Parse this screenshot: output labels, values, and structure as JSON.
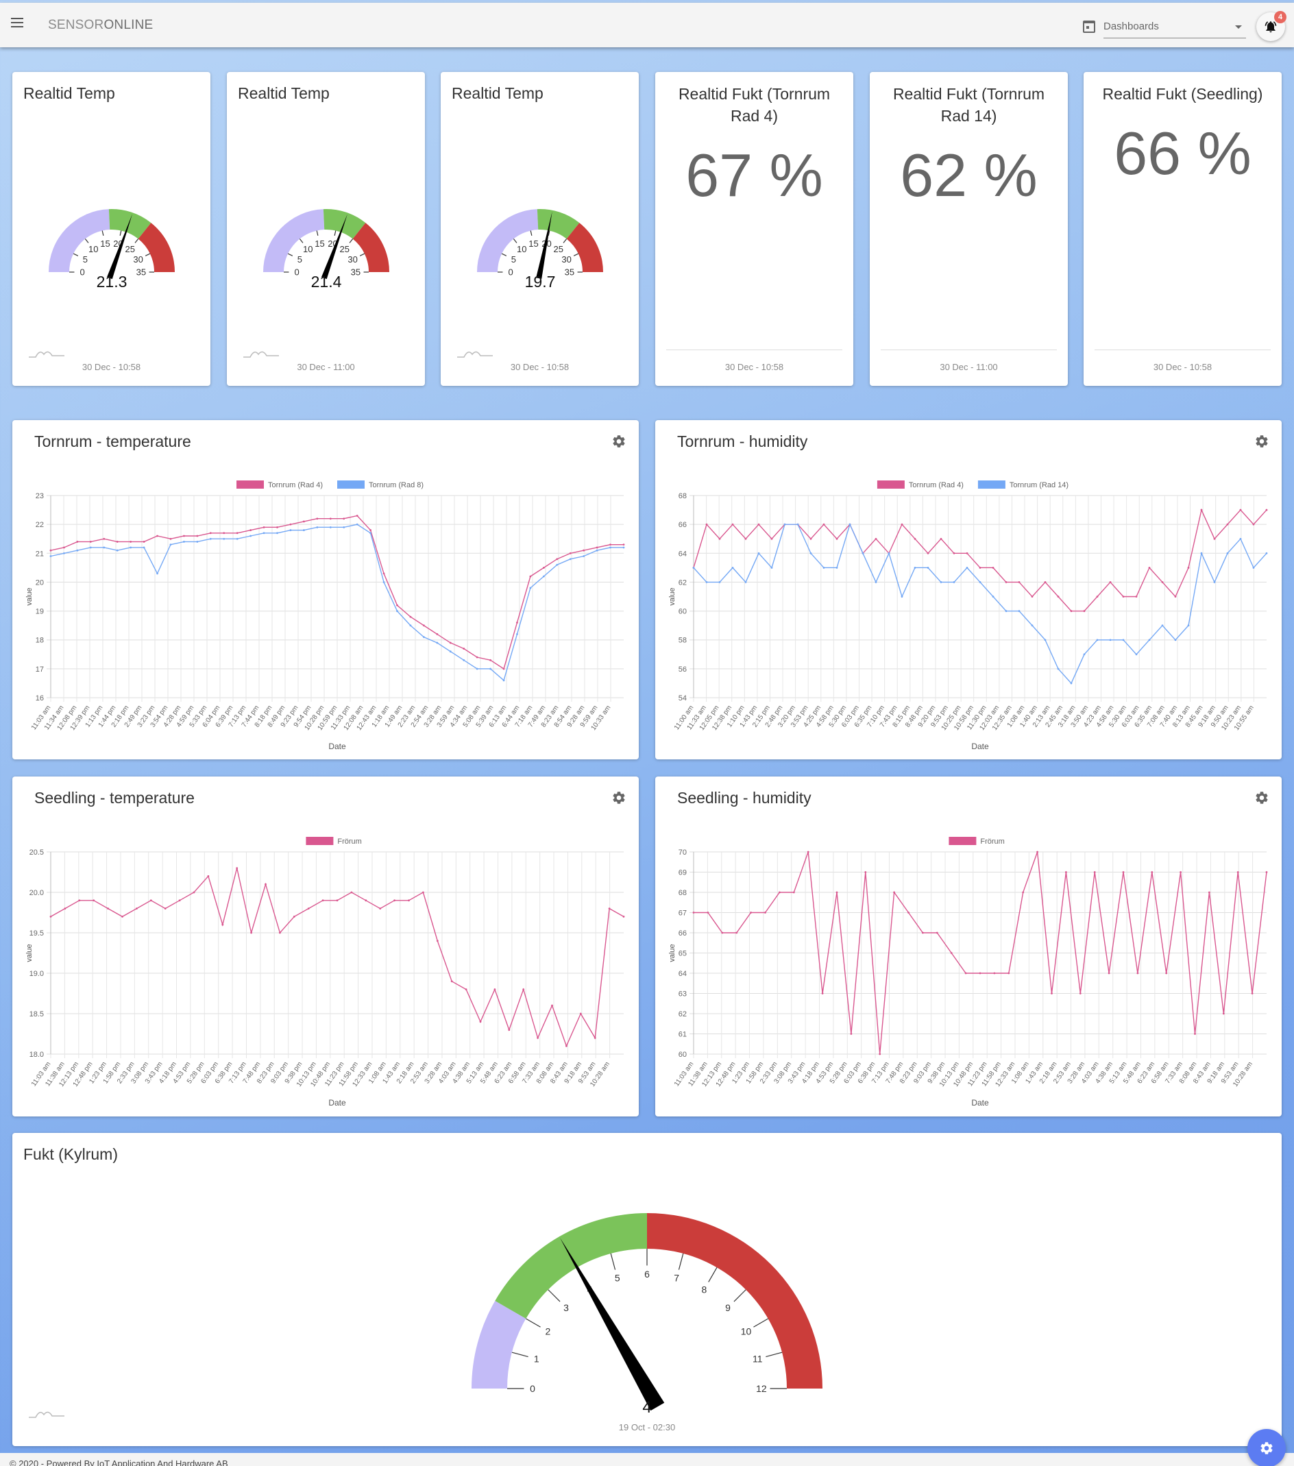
{
  "header": {
    "brand_light": "SENSOR",
    "brand_bold": "ONLINE",
    "dashboard_select": "Dashboards",
    "notification_count": "4"
  },
  "gauges": [
    {
      "title": "Realtid Temp",
      "value": "21.3",
      "value_num": 21.3,
      "min": 0,
      "max": 35,
      "ticks": [
        "0",
        "5",
        "10",
        "15",
        "20",
        "25",
        "30",
        "35"
      ],
      "date": "30 Dec - 10:58"
    },
    {
      "title": "Realtid Temp",
      "value": "21.4",
      "value_num": 21.4,
      "min": 0,
      "max": 35,
      "ticks": [
        "0",
        "5",
        "10",
        "15",
        "20",
        "25",
        "30",
        "35"
      ],
      "date": "30 Dec - 11:00"
    },
    {
      "title": "Realtid Temp",
      "value": "19.7",
      "value_num": 19.7,
      "min": 0,
      "max": 35,
      "ticks": [
        "0",
        "5",
        "10",
        "15",
        "20",
        "25",
        "30",
        "35"
      ],
      "date": "30 Dec - 10:58"
    }
  ],
  "humidity_cards": [
    {
      "title": "Realtid Fukt (Tornrum Rad 4)",
      "value": "67 %",
      "date": "30 Dec - 10:58"
    },
    {
      "title": "Realtid Fukt (Tornrum Rad 14)",
      "value": "62 %",
      "date": "30 Dec - 11:00"
    },
    {
      "title": "Realtid Fukt (Seedling)",
      "value": "66 %",
      "date": "30 Dec - 10:58"
    }
  ],
  "colors": {
    "gauge_low": "#c3bbf7",
    "gauge_mid": "#7bc35a",
    "gauge_high": "#cb3d3a",
    "series_pink": "#d9578f",
    "series_blue": "#74a8f5",
    "fab": "#5c7cf2"
  },
  "chart_data": [
    {
      "type": "line",
      "title": "Tornrum - temperature",
      "xlabel": "Date",
      "ylabel": "value",
      "ylim": [
        16,
        23
      ],
      "yticks": [
        16,
        17,
        18,
        19,
        20,
        21,
        22,
        23
      ],
      "grid": true,
      "legend_position": "top",
      "categories": [
        "11:03 am",
        "11:34 am",
        "12:08 pm",
        "12:39 pm",
        "1:13 pm",
        "1:44 pm",
        "2:18 pm",
        "2:49 pm",
        "3:23 pm",
        "3:54 pm",
        "4:28 pm",
        "4:59 pm",
        "5:33 pm",
        "6:04 pm",
        "6:39 pm",
        "7:13 pm",
        "7:44 pm",
        "8:18 pm",
        "8:49 pm",
        "9:23 pm",
        "9:54 pm",
        "10:28 pm",
        "10:59 pm",
        "11:33 pm",
        "12:08 am",
        "12:43 am",
        "1:18 am",
        "1:49 am",
        "2:23 am",
        "2:54 am",
        "3:28 am",
        "3:59 am",
        "4:34 am",
        "5:08 am",
        "5:39 am",
        "6:13 am",
        "6:44 am",
        "7:18 am",
        "7:49 am",
        "8:23 am",
        "8:54 am",
        "9:28 am",
        "9:59 am",
        "10:33 am"
      ],
      "series": [
        {
          "name": "Tornrum (Rad 4)",
          "color": "#d9578f",
          "values": [
            21.1,
            21.2,
            21.4,
            21.4,
            21.5,
            21.4,
            21.4,
            21.4,
            21.6,
            21.5,
            21.6,
            21.6,
            21.7,
            21.7,
            21.7,
            21.8,
            21.9,
            21.9,
            22.0,
            22.1,
            22.2,
            22.2,
            22.2,
            22.3,
            21.8,
            20.3,
            19.2,
            18.8,
            18.5,
            18.2,
            17.9,
            17.7,
            17.4,
            17.3,
            17.0,
            18.6,
            20.2,
            20.5,
            20.8,
            21.0,
            21.1,
            21.2,
            21.3,
            21.3
          ]
        },
        {
          "name": "Tornrum (Rad 8)",
          "color": "#74a8f5",
          "values": [
            20.9,
            21.0,
            21.1,
            21.2,
            21.2,
            21.1,
            21.2,
            21.2,
            20.3,
            21.3,
            21.4,
            21.4,
            21.5,
            21.5,
            21.5,
            21.6,
            21.7,
            21.7,
            21.8,
            21.8,
            21.9,
            21.9,
            21.9,
            22.0,
            21.7,
            20.0,
            19.0,
            18.5,
            18.1,
            17.9,
            17.6,
            17.3,
            17.0,
            17.0,
            16.6,
            18.2,
            19.8,
            20.2,
            20.6,
            20.8,
            20.9,
            21.1,
            21.2,
            21.2
          ]
        }
      ]
    },
    {
      "type": "line",
      "title": "Tornrum - humidity",
      "xlabel": "Date",
      "ylabel": "value",
      "ylim": [
        54,
        68
      ],
      "yticks": [
        54,
        56,
        58,
        60,
        62,
        64,
        66,
        68
      ],
      "grid": true,
      "legend_position": "top",
      "categories": [
        "11:00 am",
        "11:33 am",
        "12:05 pm",
        "12:38 pm",
        "1:10 pm",
        "1:43 pm",
        "2:15 pm",
        "2:48 pm",
        "3:20 pm",
        "3:53 pm",
        "4:25 pm",
        "4:58 pm",
        "5:30 pm",
        "6:03 pm",
        "6:35 pm",
        "7:10 pm",
        "7:43 pm",
        "8:15 pm",
        "8:48 pm",
        "9:20 pm",
        "9:53 pm",
        "10:25 pm",
        "10:58 pm",
        "11:30 pm",
        "12:03 am",
        "12:35 am",
        "1:08 am",
        "1:40 am",
        "2:13 am",
        "2:45 am",
        "3:18 am",
        "3:50 am",
        "4:23 am",
        "4:58 am",
        "5:30 am",
        "6:03 am",
        "6:35 am",
        "7:08 am",
        "7:40 am",
        "8:13 am",
        "8:45 am",
        "9:18 am",
        "9:50 am",
        "10:23 am",
        "10:55 am"
      ],
      "series": [
        {
          "name": "Tornrum (Rad 4)",
          "color": "#d9578f",
          "values": [
            63,
            66,
            65,
            66,
            65,
            66,
            65,
            66,
            66,
            65,
            66,
            65,
            66,
            64,
            65,
            64,
            66,
            65,
            64,
            65,
            64,
            64,
            63,
            63,
            62,
            62,
            61,
            62,
            61,
            60,
            60,
            61,
            62,
            61,
            61,
            63,
            62,
            61,
            63,
            67,
            65,
            66,
            67,
            66,
            67
          ]
        },
        {
          "name": "Tornrum (Rad 14)",
          "color": "#74a8f5",
          "values": [
            63,
            62,
            62,
            63,
            62,
            64,
            63,
            66,
            66,
            64,
            63,
            63,
            66,
            64,
            62,
            64,
            61,
            63,
            63,
            62,
            62,
            63,
            62,
            61,
            60,
            60,
            59,
            58,
            56,
            55,
            57,
            58,
            58,
            58,
            57,
            58,
            59,
            58,
            59,
            64,
            62,
            64,
            65,
            63,
            64
          ]
        }
      ]
    },
    {
      "type": "line",
      "title": "Seedling - temperature",
      "xlabel": "Date",
      "ylabel": "value",
      "ylim": [
        18.0,
        20.5
      ],
      "yticks": [
        18.0,
        18.5,
        19.0,
        19.5,
        20.0,
        20.5
      ],
      "grid": true,
      "legend_position": "top",
      "categories": [
        "11:03 am",
        "11:38 am",
        "12:13 pm",
        "12:48 pm",
        "1:23 pm",
        "1:58 pm",
        "2:33 pm",
        "3:08 pm",
        "3:43 pm",
        "4:18 pm",
        "4:53 pm",
        "5:28 pm",
        "6:03 pm",
        "6:38 pm",
        "7:13 pm",
        "7:48 pm",
        "8:23 pm",
        "9:03 pm",
        "9:38 pm",
        "10:13 pm",
        "10:48 pm",
        "11:23 pm",
        "11:58 pm",
        "12:33 am",
        "1:08 am",
        "1:43 am",
        "2:18 am",
        "2:53 am",
        "3:28 am",
        "4:03 am",
        "4:38 am",
        "5:13 am",
        "5:48 am",
        "6:23 am",
        "6:58 am",
        "7:33 am",
        "8:08 am",
        "8:43 am",
        "9:18 am",
        "9:53 am",
        "10:28 am"
      ],
      "series": [
        {
          "name": "Frörum",
          "color": "#d9578f",
          "values": [
            19.7,
            19.8,
            19.9,
            19.9,
            19.8,
            19.7,
            19.8,
            19.9,
            19.8,
            19.9,
            20.0,
            20.2,
            19.6,
            20.3,
            19.5,
            20.1,
            19.5,
            19.7,
            19.8,
            19.9,
            19.9,
            20.0,
            19.9,
            19.8,
            19.9,
            19.9,
            20.0,
            19.4,
            18.9,
            18.8,
            18.4,
            18.8,
            18.3,
            18.8,
            18.2,
            18.6,
            18.1,
            18.5,
            18.2,
            19.8,
            19.7
          ]
        }
      ]
    },
    {
      "type": "line",
      "title": "Seedling - humidity",
      "xlabel": "Date",
      "ylabel": "value",
      "ylim": [
        60,
        70
      ],
      "yticks": [
        60,
        61,
        62,
        63,
        64,
        65,
        66,
        67,
        68,
        69,
        70
      ],
      "grid": true,
      "legend_position": "top",
      "categories": [
        "11:03 am",
        "11:38 am",
        "12:13 pm",
        "12:48 pm",
        "1:23 pm",
        "1:58 pm",
        "2:33 pm",
        "3:08 pm",
        "3:43 pm",
        "4:18 pm",
        "4:53 pm",
        "5:28 pm",
        "6:03 pm",
        "6:38 pm",
        "7:13 pm",
        "7:48 pm",
        "8:23 pm",
        "9:03 pm",
        "9:38 pm",
        "10:13 pm",
        "10:48 pm",
        "11:23 pm",
        "11:58 pm",
        "12:33 am",
        "1:08 am",
        "1:43 am",
        "2:18 am",
        "2:53 am",
        "3:28 am",
        "4:03 am",
        "4:38 am",
        "5:13 am",
        "5:48 am",
        "6:23 am",
        "6:58 am",
        "7:33 am",
        "8:08 am",
        "8:43 am",
        "9:18 am",
        "9:53 am",
        "10:28 am"
      ],
      "series": [
        {
          "name": "Frörum",
          "color": "#d9578f",
          "values": [
            67,
            67,
            66,
            66,
            67,
            67,
            68,
            68,
            70,
            63,
            68,
            61,
            69,
            60,
            68,
            67,
            66,
            66,
            65,
            64,
            64,
            64,
            64,
            68,
            70,
            63,
            69,
            63,
            69,
            64,
            69,
            64,
            69,
            64,
            69,
            61,
            68,
            62,
            69,
            63,
            69
          ]
        }
      ]
    }
  ],
  "kylrum": {
    "title": "Fukt (Kylrum)",
    "value": "4",
    "value_num": 4,
    "min": 0,
    "max": 12,
    "ticks": [
      "0",
      "1",
      "2",
      "3",
      "4",
      "5",
      "6",
      "7",
      "8",
      "9",
      "10",
      "11",
      "12"
    ],
    "date": "19 Oct - 02:30"
  },
  "footer": {
    "text": "© 2020 - Powered By IoT Application And Hardware AB"
  }
}
